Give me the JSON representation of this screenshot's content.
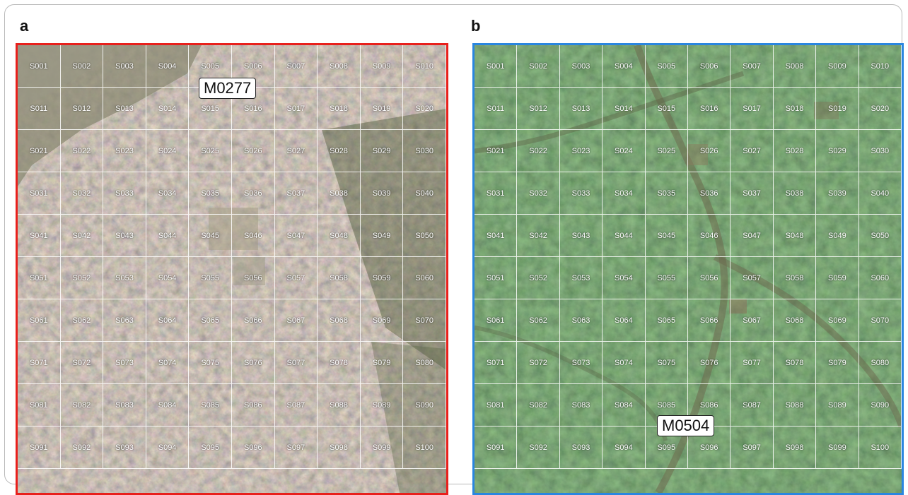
{
  "panels": [
    {
      "letter": "a",
      "label": "M0277",
      "border_color": "#e8201c",
      "land_cover": "dense urban",
      "cells": [
        "S001",
        "S002",
        "S003",
        "S004",
        "S005",
        "S006",
        "S007",
        "S008",
        "S009",
        "S010",
        "S011",
        "S012",
        "S013",
        "S014",
        "S015",
        "S016",
        "S017",
        "S018",
        "S019",
        "S020",
        "S021",
        "S022",
        "S023",
        "S024",
        "S025",
        "S026",
        "S027",
        "S028",
        "S029",
        "S030",
        "S031",
        "S032",
        "S033",
        "S034",
        "S035",
        "S036",
        "S037",
        "S038",
        "S039",
        "S040",
        "S041",
        "S042",
        "S043",
        "S044",
        "S045",
        "S046",
        "S047",
        "S048",
        "S049",
        "S050",
        "S051",
        "S052",
        "S053",
        "S054",
        "S055",
        "S056",
        "S057",
        "S058",
        "S059",
        "S060",
        "S061",
        "S062",
        "S063",
        "S064",
        "S065",
        "S066",
        "S067",
        "S068",
        "S069",
        "S070",
        "S071",
        "S072",
        "S073",
        "S074",
        "S075",
        "S076",
        "S077",
        "S078",
        "S079",
        "S080",
        "S081",
        "S082",
        "S083",
        "S084",
        "S085",
        "S086",
        "S087",
        "S088",
        "S089",
        "S090",
        "S091",
        "S092",
        "S093",
        "S094",
        "S095",
        "S096",
        "S097",
        "S098",
        "S099",
        "S100"
      ]
    },
    {
      "letter": "b",
      "label": "M0504",
      "border_color": "#2a86e0",
      "land_cover": "forest",
      "cells": [
        "S001",
        "S002",
        "S003",
        "S004",
        "S005",
        "S006",
        "S007",
        "S008",
        "S009",
        "S010",
        "S011",
        "S012",
        "S013",
        "S014",
        "S015",
        "S016",
        "S017",
        "S018",
        "S019",
        "S020",
        "S021",
        "S022",
        "S023",
        "S024",
        "S025",
        "S026",
        "S027",
        "S028",
        "S029",
        "S030",
        "S031",
        "S032",
        "S033",
        "S034",
        "S035",
        "S036",
        "S037",
        "S038",
        "S039",
        "S040",
        "S041",
        "S042",
        "S043",
        "S044",
        "S045",
        "S046",
        "S047",
        "S048",
        "S049",
        "S050",
        "S051",
        "S052",
        "S053",
        "S054",
        "S055",
        "S056",
        "S057",
        "S058",
        "S059",
        "S060",
        "S061",
        "S062",
        "S063",
        "S064",
        "S065",
        "S066",
        "S067",
        "S068",
        "S069",
        "S070",
        "S071",
        "S072",
        "S073",
        "S074",
        "S075",
        "S076",
        "S077",
        "S078",
        "S079",
        "S080",
        "S081",
        "S082",
        "S083",
        "S084",
        "S085",
        "S086",
        "S087",
        "S088",
        "S089",
        "S090",
        "S091",
        "S092",
        "S093",
        "S094",
        "S095",
        "S096",
        "S097",
        "S098",
        "S099",
        "S100"
      ]
    }
  ]
}
